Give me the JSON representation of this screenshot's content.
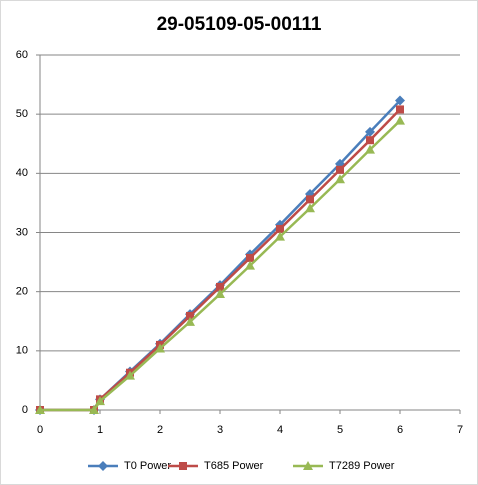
{
  "chart_data": {
    "type": "line",
    "title": "29-05109-05-00111",
    "x": [
      0,
      0.9,
      1,
      1.5,
      2,
      2.5,
      3,
      3.5,
      4,
      4.5,
      5,
      5.5,
      6
    ],
    "series": [
      {
        "name": "T0 Power",
        "color": "#4a7ebb",
        "marker": "diamond",
        "values": [
          0,
          0,
          1.8,
          6.5,
          11.2,
          16.2,
          21.1,
          26.3,
          31.3,
          36.5,
          41.6,
          47,
          52.3
        ]
      },
      {
        "name": "T685 Power",
        "color": "#be4b48",
        "marker": "square",
        "values": [
          0,
          0,
          1.8,
          6.3,
          11,
          15.9,
          20.8,
          25.7,
          30.6,
          35.6,
          40.6,
          45.6,
          50.8
        ]
      },
      {
        "name": "T7289 Power",
        "color": "#98b954",
        "marker": "triangle",
        "values": [
          0,
          0,
          1.5,
          5.8,
          10.4,
          14.9,
          19.6,
          24.4,
          29.3,
          34.1,
          39,
          44,
          48.9
        ]
      }
    ],
    "xlim": [
      0,
      7
    ],
    "xticks": [
      0,
      1,
      2,
      3,
      4,
      5,
      6,
      7
    ],
    "ylim": [
      0,
      60
    ],
    "yticks": [
      0,
      10,
      20,
      30,
      40,
      50,
      60
    ],
    "grid": true,
    "legend": "bottom"
  }
}
